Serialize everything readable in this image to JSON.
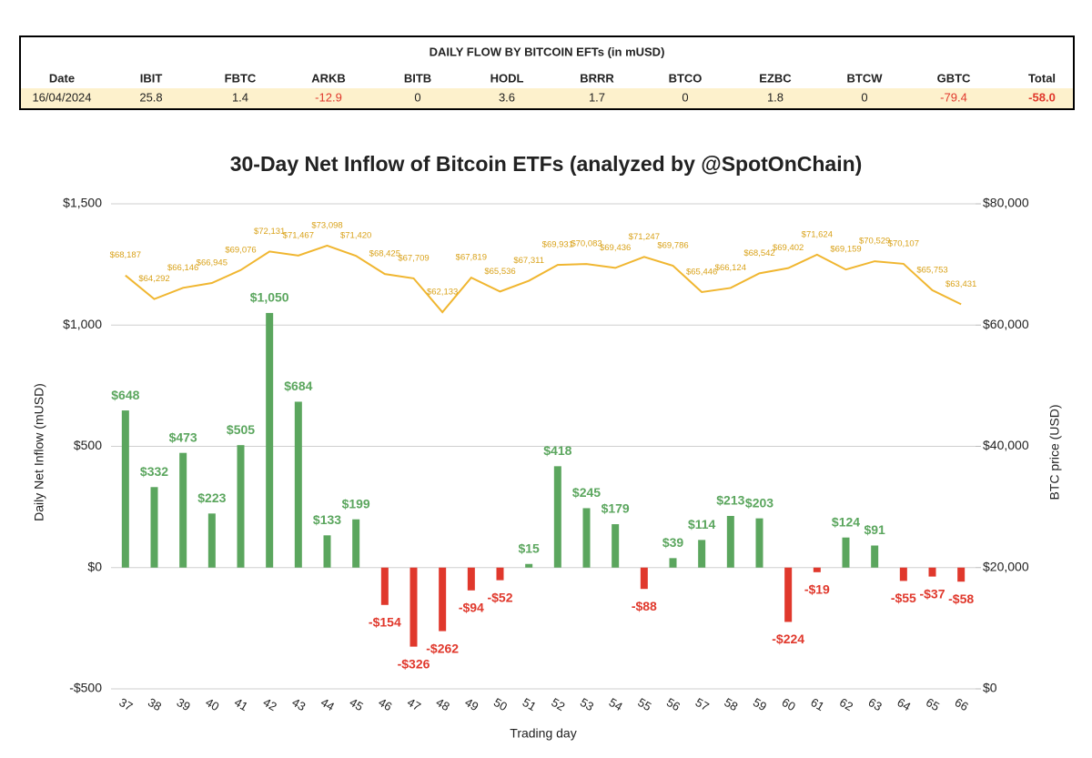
{
  "table": {
    "title": "DAILY FLOW BY BITCOIN EFTs (in mUSD)",
    "header": [
      "Date",
      "IBIT",
      "FBTC",
      "ARKB",
      "BITB",
      "HODL",
      "BRRR",
      "BTCO",
      "EZBC",
      "BTCW",
      "GBTC",
      "Total"
    ],
    "rows": [
      [
        "16/04/2024",
        "25.8",
        "1.4",
        "-12.9",
        "0",
        "3.6",
        "1.7",
        "0",
        "1.8",
        "0",
        "-79.4",
        "-58.0"
      ]
    ]
  },
  "chart_data": {
    "type": "bar",
    "title": "30-Day Net Inflow of Bitcoin ETFs (analyzed by @SpotOnChain)",
    "x_label": "Trading day",
    "y_label": "Daily Net Inflow (mUSD)",
    "y2_label": "BTC price (USD)",
    "categories": [
      "37",
      "38",
      "39",
      "40",
      "41",
      "42",
      "43",
      "44",
      "45",
      "46",
      "47",
      "48",
      "49",
      "50",
      "51",
      "52",
      "53",
      "54",
      "55",
      "56",
      "57",
      "58",
      "59",
      "60",
      "61",
      "62",
      "63",
      "64",
      "65",
      "66"
    ],
    "series": [
      {
        "type": "bar",
        "positive_color": "#5ba65e",
        "negative_color": "#e0382c",
        "values": [
          648,
          332,
          473,
          223,
          505,
          1050,
          684,
          133,
          199,
          -154,
          -326,
          -262,
          -94,
          -52,
          15,
          418,
          245,
          179,
          -88,
          39,
          114,
          213,
          203,
          -224,
          -19,
          124,
          91,
          -55,
          -37,
          -58
        ],
        "value_labels": [
          "$648",
          "$332",
          "$473",
          "$223",
          "$505",
          "$1,050",
          "$684",
          "$133",
          "$199",
          "-$154",
          "-$326",
          "-$262",
          "-$94",
          "-$52",
          "$15",
          "$418",
          "$245",
          "$179",
          "-$88",
          "$39",
          "$114",
          "$213",
          "$203",
          "-$224",
          "-$19",
          "$124",
          "$91",
          "-$55",
          "-$37",
          "-$58"
        ]
      },
      {
        "type": "line",
        "axis": "y2",
        "color": "#f0b630",
        "values": [
          68187,
          64292,
          66146,
          66945,
          69076,
          72131,
          71467,
          73098,
          71420,
          68425,
          67709,
          62133,
          67819,
          65536,
          67311,
          69931,
          70083,
          69436,
          71247,
          69786,
          65446,
          66124,
          68542,
          69402,
          71624,
          69159,
          70529,
          70107,
          65753,
          63431
        ],
        "value_labels": [
          "$68,187",
          "$64,292",
          "$66,146",
          "$66,945",
          "$69,076",
          "$72,131",
          "$71,467",
          "$73,098",
          "$71,420",
          "$68,425",
          "$67,709",
          "$62,133",
          "$67,819",
          "$65,536",
          "$67,311",
          "$69,931",
          "$70,083",
          "$69,436",
          "$71,247",
          "$69,786",
          "$65,446",
          "$66,124",
          "$68,542",
          "$69,402",
          "$71,624",
          "$69,159",
          "$70,529",
          "$70,107",
          "$65,753",
          "$63,431"
        ]
      }
    ],
    "ylim": [
      -500,
      1500
    ],
    "yticks": [
      {
        "value": -500,
        "label": "-$500"
      },
      {
        "value": 0,
        "label": "$0"
      },
      {
        "value": 500,
        "label": "$500"
      },
      {
        "value": 1000,
        "label": "$1,000"
      },
      {
        "value": 1500,
        "label": "$1,500"
      }
    ],
    "y2lim": [
      0,
      80000
    ],
    "y2ticks": [
      {
        "value": 0,
        "label": "$0"
      },
      {
        "value": 20000,
        "label": "$20,000"
      },
      {
        "value": 40000,
        "label": "$40,000"
      },
      {
        "value": 60000,
        "label": "$60,000"
      },
      {
        "value": 80000,
        "label": "$80,000"
      }
    ],
    "grid": true
  }
}
